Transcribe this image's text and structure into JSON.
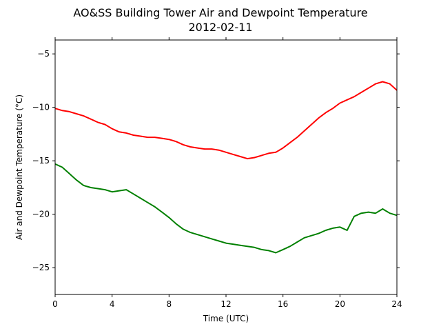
{
  "chart_data": {
    "type": "line",
    "title": "AO&SS Building Tower Air and Dewpoint Temperature",
    "subtitle": "2012-02-11",
    "xlabel": "Time (UTC)",
    "ylabel": "Air and Dewpoint Temperature (°C)",
    "xlim": [
      0,
      24
    ],
    "ylim": [
      -27.5,
      -3.7
    ],
    "xticks": [
      0,
      4,
      8,
      12,
      16,
      20,
      24
    ],
    "yticks": [
      -25,
      -20,
      -15,
      -10,
      -5
    ],
    "grid": false,
    "colors": {
      "air": "#ff0000",
      "dewpoint": "#008000"
    },
    "series": [
      {
        "x": [
          0,
          0.5,
          1,
          1.5,
          2,
          2.5,
          3,
          3.5,
          4,
          4.5,
          5,
          5.5,
          6,
          6.5,
          7,
          7.5,
          8,
          8.5,
          9,
          9.5,
          10,
          10.5,
          11,
          11.5,
          12,
          12.5,
          13,
          13.5,
          14,
          14.5,
          15,
          15.5,
          16,
          16.5,
          17,
          17.5,
          18,
          18.5,
          19,
          19.5,
          20,
          20.5,
          21,
          21.5,
          22,
          22.5,
          23,
          23.5,
          24
        ],
        "values": [
          -10.1,
          -10.3,
          -10.4,
          -10.6,
          -10.8,
          -11.1,
          -11.4,
          -11.6,
          -12.0,
          -12.3,
          -12.4,
          -12.6,
          -12.7,
          -12.8,
          -12.8,
          -12.9,
          -13.0,
          -13.2,
          -13.5,
          -13.7,
          -13.8,
          -13.9,
          -13.9,
          -14.0,
          -14.2,
          -14.4,
          -14.6,
          -14.8,
          -14.7,
          -14.5,
          -14.3,
          -14.2,
          -13.8,
          -13.3,
          -12.8,
          -12.2,
          -11.6,
          -11.0,
          -10.5,
          -10.1,
          -9.6,
          -9.3,
          -9.0,
          -8.6,
          -8.2,
          -7.8,
          -7.6,
          -7.8,
          -8.4
        ]
      },
      {
        "x": [
          0,
          0.5,
          1,
          1.5,
          2,
          2.5,
          3,
          3.5,
          4,
          4.5,
          5,
          5.5,
          6,
          6.5,
          7,
          7.5,
          8,
          8.5,
          9,
          9.5,
          10,
          10.5,
          11,
          11.5,
          12,
          12.5,
          13,
          13.5,
          14,
          14.5,
          15,
          15.5,
          16,
          16.5,
          17,
          17.5,
          18,
          18.5,
          19,
          19.5,
          20,
          20.5,
          21,
          21.5,
          22,
          22.5,
          23,
          23.5,
          24
        ],
        "values": [
          -15.3,
          -15.6,
          -16.2,
          -16.8,
          -17.3,
          -17.5,
          -17.6,
          -17.7,
          -17.9,
          -17.8,
          -17.7,
          -18.1,
          -18.5,
          -18.9,
          -19.3,
          -19.8,
          -20.3,
          -20.9,
          -21.4,
          -21.7,
          -21.9,
          -22.1,
          -22.3,
          -22.5,
          -22.7,
          -22.8,
          -22.9,
          -23.0,
          -23.1,
          -23.3,
          -23.4,
          -23.6,
          -23.3,
          -23.0,
          -22.6,
          -22.2,
          -22.0,
          -21.8,
          -21.5,
          -21.3,
          -21.2,
          -21.5,
          -20.2,
          -19.9,
          -19.8,
          -19.9,
          -19.5,
          -19.9,
          -20.1
        ]
      }
    ]
  }
}
